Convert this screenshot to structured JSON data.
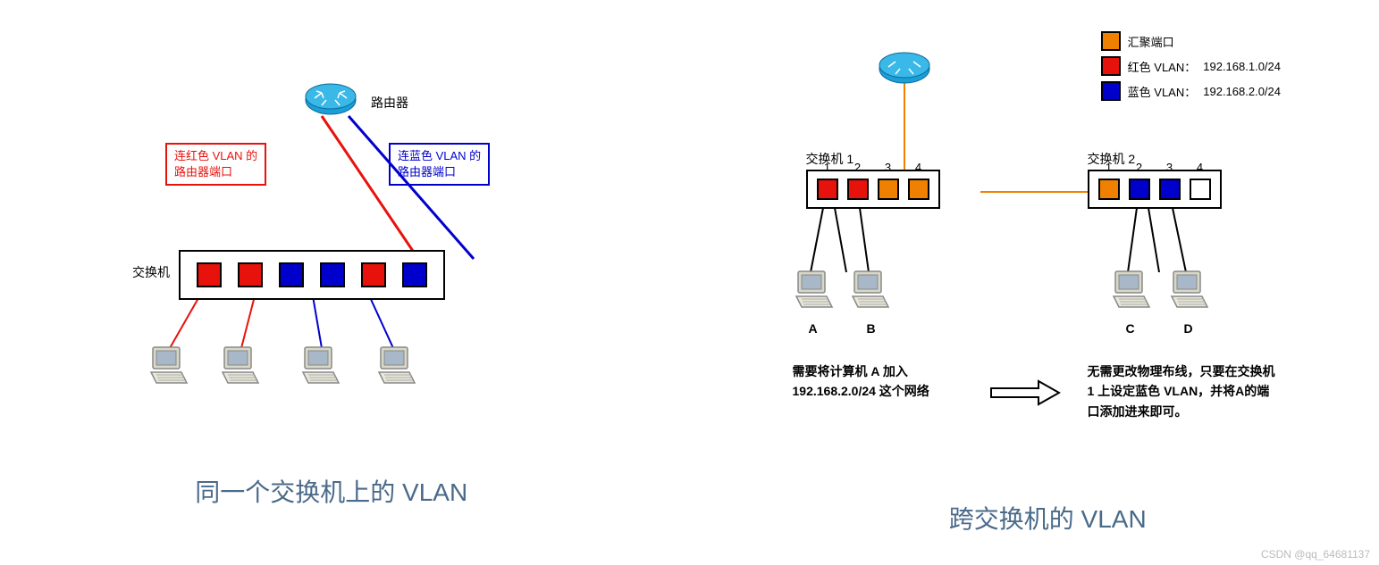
{
  "colors": {
    "red": "#e8120c",
    "blue": "#0000cc",
    "orange": "#f08000",
    "white": "#ffffff",
    "title": "#4a6a8a",
    "router_blue": "#1a9fd9",
    "black": "#000000"
  },
  "left": {
    "title": "同一个交换机上的 VLAN",
    "router_label": "路由器",
    "switch_label": "交换机",
    "red_box": {
      "line1": "连红色 VLAN 的",
      "line2": "路由器端口"
    },
    "blue_box": {
      "line1": "连蓝色 VLAN 的",
      "line2": "路由器端口"
    },
    "ports": [
      {
        "color": "#e8120c"
      },
      {
        "color": "#e8120c"
      },
      {
        "color": "#0000cc"
      },
      {
        "color": "#0000cc"
      },
      {
        "color": "#e8120c"
      },
      {
        "color": "#0000cc"
      }
    ]
  },
  "right": {
    "title": "跨交换机的 VLAN",
    "legend": [
      {
        "color": "#f08000",
        "label": "汇聚端口"
      },
      {
        "color": "#e8120c",
        "label": "红色 VLAN：",
        "extra": "192.168.1.0/24"
      },
      {
        "color": "#0000cc",
        "label": "蓝色 VLAN：",
        "extra": "192.168.2.0/24"
      }
    ],
    "switch1_label": "交换机 1",
    "switch2_label": "交换机 2",
    "switch1_ports": [
      {
        "num": "1",
        "color": "#e8120c"
      },
      {
        "num": "2",
        "color": "#e8120c"
      },
      {
        "num": "3",
        "color": "#f08000"
      },
      {
        "num": "4",
        "color": "#f08000"
      }
    ],
    "switch2_ports": [
      {
        "num": "1",
        "color": "#f08000"
      },
      {
        "num": "2",
        "color": "#0000cc"
      },
      {
        "num": "3",
        "color": "#0000cc"
      },
      {
        "num": "4",
        "color": "#ffffff"
      }
    ],
    "comp_labels": {
      "a": "A",
      "b": "B",
      "c": "C",
      "d": "D"
    },
    "left_para": "需要将计算机 A 加入 192.168.2.0/24 这个网络",
    "right_para": "无需更改物理布线，只要在交换机 1 上设定蓝色 VLAN，并将A的端口添加进来即可。"
  },
  "watermark": "CSDN @qq_64681137"
}
